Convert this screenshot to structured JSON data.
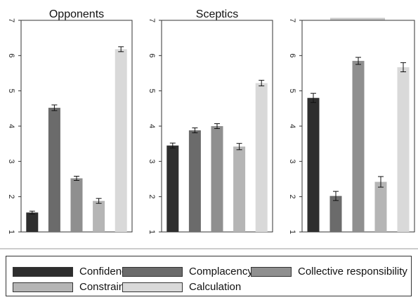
{
  "chart_data": [
    {
      "type": "bar",
      "title": "Opponents",
      "categories": [
        "Confidence",
        "Complacency",
        "Collective responsibility",
        "Constraints",
        "Calculation"
      ],
      "values": [
        1.55,
        4.52,
        2.52,
        1.88,
        6.18
      ],
      "errors": [
        0.04,
        0.08,
        0.06,
        0.07,
        0.07
      ],
      "ylim": [
        1,
        7
      ],
      "yticks": [
        "1",
        "2",
        "3",
        "4",
        "5",
        "6",
        "7"
      ]
    },
    {
      "type": "bar",
      "title": "Sceptics",
      "categories": [
        "Confidence",
        "Complacency",
        "Collective responsibility",
        "Constraints",
        "Calculation"
      ],
      "values": [
        3.45,
        3.88,
        4.0,
        3.42,
        5.22
      ],
      "errors": [
        0.07,
        0.07,
        0.07,
        0.09,
        0.08
      ],
      "ylim": [
        1,
        7
      ],
      "yticks": [
        "1",
        "2",
        "3",
        "4",
        "5",
        "6",
        "7"
      ]
    },
    {
      "type": "bar",
      "title": "",
      "categories": [
        "Confidence",
        "Complacency",
        "Collective responsibility",
        "Constraints",
        "Calculation"
      ],
      "values": [
        4.8,
        2.02,
        5.85,
        2.42,
        5.67
      ],
      "errors": [
        0.13,
        0.13,
        0.1,
        0.15,
        0.13
      ],
      "ylim": [
        1,
        7
      ],
      "yticks": [
        "1",
        "2",
        "3",
        "4",
        "5",
        "6",
        "7"
      ]
    }
  ],
  "legend": [
    {
      "label": "Confidence",
      "color": "#2e2e2e"
    },
    {
      "label": "Complacency",
      "color": "#6b6b6b"
    },
    {
      "label": "Collective responsibility",
      "color": "#8f8f8f"
    },
    {
      "label": "Constraints",
      "color": "#b5b5b5"
    },
    {
      "label": "Calculation",
      "color": "#d9d9d9"
    }
  ]
}
